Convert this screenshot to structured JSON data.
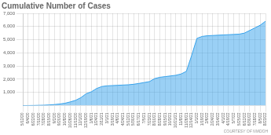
{
  "chart_data": {
    "type": "area",
    "title": "Cumulative Number of Cases",
    "categories": [
      "5/12/20",
      "6/4/20",
      "6/22/20",
      "7/10/20",
      "7/28/20",
      "8/15/20",
      "9/2/20",
      "9/20/20",
      "10/8/20",
      "10/26/20",
      "11/13/20",
      "12/1/20",
      "12/19/20",
      "1/6/21",
      "1/24/21",
      "2/11/21",
      "3/1/21",
      "3/19/21",
      "4/6/21",
      "4/24/21",
      "5/12/21",
      "5/30/21",
      "6/17/21",
      "7/5/21",
      "7/23/21",
      "8/10/21",
      "8/28/21",
      "9/15/21",
      "10/3/21",
      "10/21/21",
      "11/8/21",
      "11/26/21",
      "12/14/21",
      "1/1/22",
      "1/19/22",
      "2/6/22",
      "2/24/22",
      "3/14/22",
      "4/1/22",
      "4/19/22",
      "5/7/22",
      "5/25/22",
      "6/12/22",
      "6/30/22",
      "7/18/22",
      "8/5/22",
      "8/23/22"
    ],
    "values": [
      0,
      5,
      10,
      20,
      30,
      50,
      80,
      120,
      180,
      280,
      400,
      600,
      900,
      1050,
      1300,
      1450,
      1500,
      1520,
      1540,
      1560,
      1580,
      1620,
      1680,
      1750,
      1820,
      2050,
      2150,
      2200,
      2250,
      2300,
      2400,
      2600,
      3800,
      5100,
      5250,
      5300,
      5320,
      5340,
      5360,
      5380,
      5400,
      5420,
      5500,
      5700,
      5900,
      6100,
      6400
    ],
    "ylim": [
      0,
      7000
    ],
    "yticks": [
      {
        "value": 1000,
        "label": "1,000"
      },
      {
        "value": 2000,
        "label": "2,000"
      },
      {
        "value": 3000,
        "label": "3,000"
      },
      {
        "value": 4000,
        "label": "4,000"
      },
      {
        "value": 5000,
        "label": "5,000"
      },
      {
        "value": 6000,
        "label": "6,000"
      },
      {
        "value": 7000,
        "label": "7,000"
      }
    ],
    "grid": true,
    "annotations": [
      "COURTESY OF NMDOH"
    ]
  }
}
